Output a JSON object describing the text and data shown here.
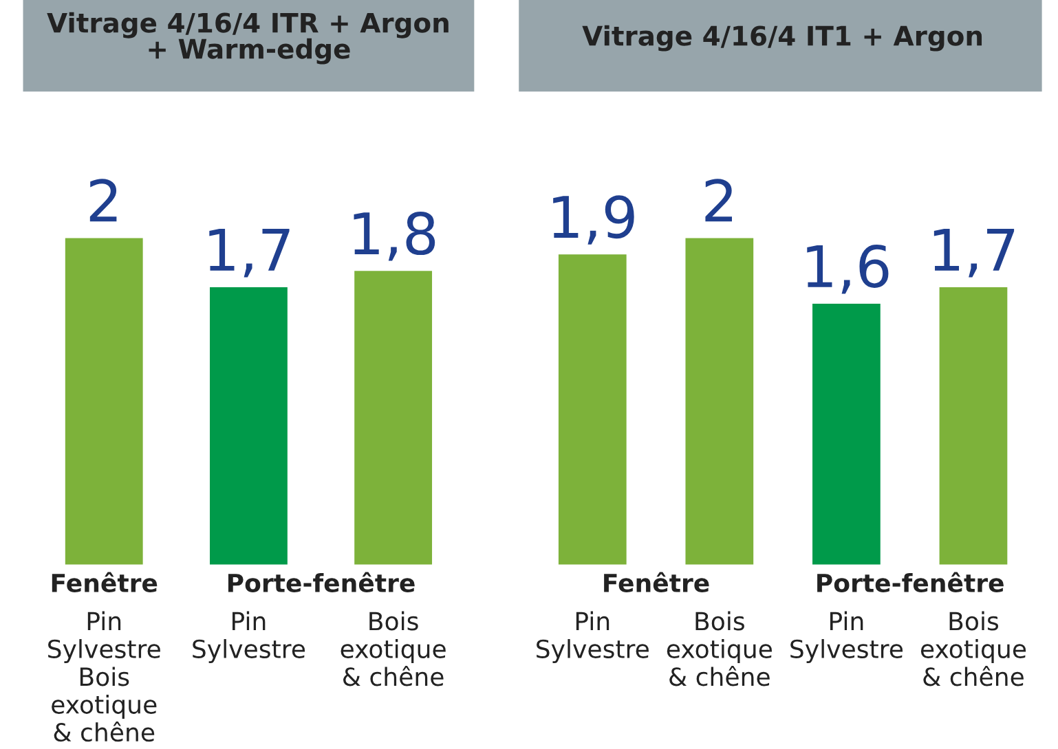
{
  "chart_data": [
    {
      "type": "bar",
      "title": "Vitrage 4/16/4 ITR + Argon\n+ Warm-edge",
      "categories": [
        "Pin\nSylvestre\nBois\nexotique\n& chêne",
        "Pin\nSylvestre",
        "Bois\nexotique\n& chêne"
      ],
      "values": [
        2,
        1.7,
        1.8
      ],
      "value_labels": [
        "2",
        "1,7",
        "1,8"
      ],
      "colors": [
        "#7db23a",
        "#009a4a",
        "#7db23a"
      ],
      "annotations": [
        "Fenêtre",
        "Porte-fenêtre"
      ],
      "legend": false,
      "grid": false
    },
    {
      "type": "bar",
      "title": "Vitrage 4/16/4 IT1 + Argon",
      "categories": [
        "Pin\nSylvestre",
        "Bois\nexotique\n& chêne",
        "Pin\nSylvestre",
        "Bois\nexotique\n& chêne"
      ],
      "values": [
        1.9,
        2,
        1.6,
        1.7
      ],
      "value_labels": [
        "1,9",
        "2",
        "1,6",
        "1,7"
      ],
      "colors": [
        "#7db23a",
        "#7db23a",
        "#009a4a",
        "#7db23a"
      ],
      "annotations": [
        "Fenêtre",
        "Porte-fenêtre"
      ],
      "legend": false,
      "grid": false
    }
  ]
}
